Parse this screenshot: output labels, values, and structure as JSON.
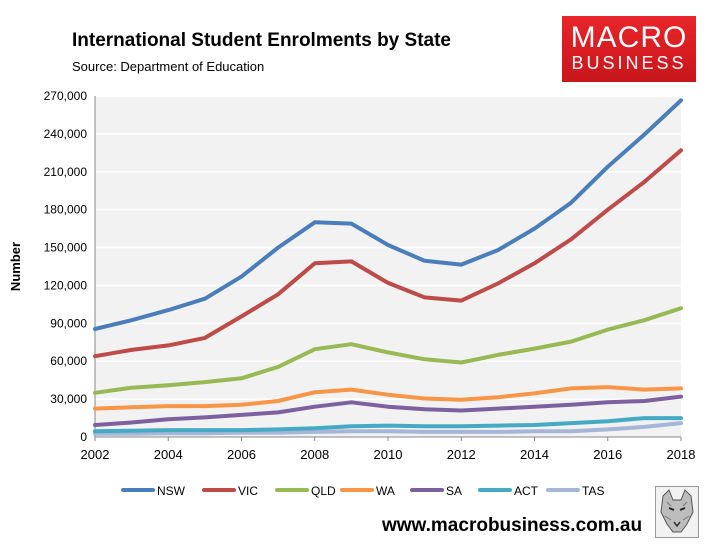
{
  "header": {
    "title": "International Student Enrolments by State",
    "source": "Source: Department of Education"
  },
  "logo": {
    "line1": "MACRO",
    "line2": "BUSINESS"
  },
  "footer": {
    "url": "www.macrobusiness.com.au"
  },
  "chart_data": {
    "type": "line",
    "title": "International Student Enrolments by State",
    "subtitle": "Source: Department of Education",
    "xlabel": "",
    "ylabel": "Number",
    "x": [
      2002,
      2003,
      2004,
      2005,
      2006,
      2007,
      2008,
      2009,
      2010,
      2011,
      2012,
      2013,
      2014,
      2015,
      2016,
      2017,
      2018
    ],
    "xlim": [
      2002,
      2018
    ],
    "ylim": [
      0,
      270000
    ],
    "x_ticks": [
      "2002",
      "2004",
      "2006",
      "2008",
      "2010",
      "2012",
      "2014",
      "2016",
      "2018"
    ],
    "x_tick_values": [
      2002,
      2004,
      2006,
      2008,
      2010,
      2012,
      2014,
      2016,
      2018
    ],
    "y_ticks": [
      "0",
      "30,000",
      "60,000",
      "90,000",
      "120,000",
      "150,000",
      "180,000",
      "210,000",
      "240,000",
      "270,000"
    ],
    "y_tick_values": [
      0,
      30000,
      60000,
      90000,
      120000,
      150000,
      180000,
      210000,
      240000,
      270000
    ],
    "grid": "horizontal",
    "legend_position": "bottom",
    "series": [
      {
        "name": "NSW",
        "color": "#4a7ebb",
        "values": [
          85500,
          92500,
          100500,
          109500,
          127000,
          150000,
          170000,
          169000,
          152000,
          139500,
          136500,
          148000,
          165000,
          185500,
          214000,
          239500,
          266500
        ]
      },
      {
        "name": "VIC",
        "color": "#be4b48",
        "values": [
          64000,
          69000,
          72500,
          78500,
          95500,
          113000,
          137500,
          139000,
          122000,
          110500,
          108000,
          121500,
          137500,
          156500,
          180000,
          202000,
          227000
        ]
      },
      {
        "name": "QLD",
        "color": "#98b954",
        "values": [
          35000,
          39000,
          41000,
          43500,
          46500,
          55500,
          69500,
          73500,
          67000,
          61500,
          59000,
          65000,
          70000,
          75500,
          85000,
          92500,
          102000
        ]
      },
      {
        "name": "WA",
        "color": "#f79646",
        "values": [
          22500,
          23500,
          24500,
          24500,
          25500,
          28500,
          35500,
          37500,
          33500,
          30500,
          29500,
          31500,
          34500,
          38500,
          39500,
          37500,
          38500
        ]
      },
      {
        "name": "SA",
        "color": "#7d60a0",
        "values": [
          9500,
          11500,
          14000,
          15500,
          17500,
          19500,
          24000,
          27500,
          24000,
          22000,
          21000,
          22500,
          24000,
          25500,
          27500,
          28500,
          32000
        ]
      },
      {
        "name": "ACT",
        "color": "#46aac5",
        "values": [
          4500,
          5000,
          5500,
          5500,
          5500,
          6000,
          7000,
          8500,
          9000,
          8500,
          8500,
          9000,
          9500,
          11000,
          12500,
          15000,
          15000
        ]
      },
      {
        "name": "TAS",
        "color": "#a5b6d9",
        "values": [
          2500,
          2500,
          3000,
          3000,
          3500,
          3500,
          4000,
          4500,
          4500,
          4000,
          4000,
          4000,
          4500,
          4500,
          6000,
          8000,
          11000
        ]
      }
    ]
  }
}
